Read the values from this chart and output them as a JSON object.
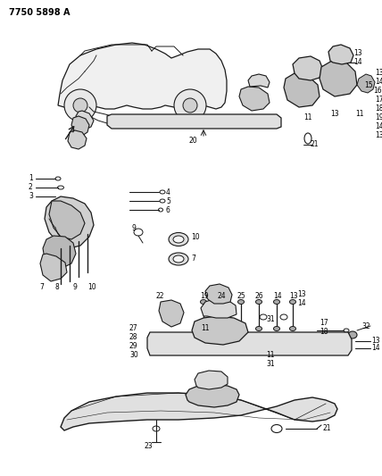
{
  "title": "7750 5898 A",
  "bg_color": "#ffffff",
  "lc": "#1a1a1a",
  "fig_width": 4.28,
  "fig_height": 5.33,
  "dpi": 100
}
